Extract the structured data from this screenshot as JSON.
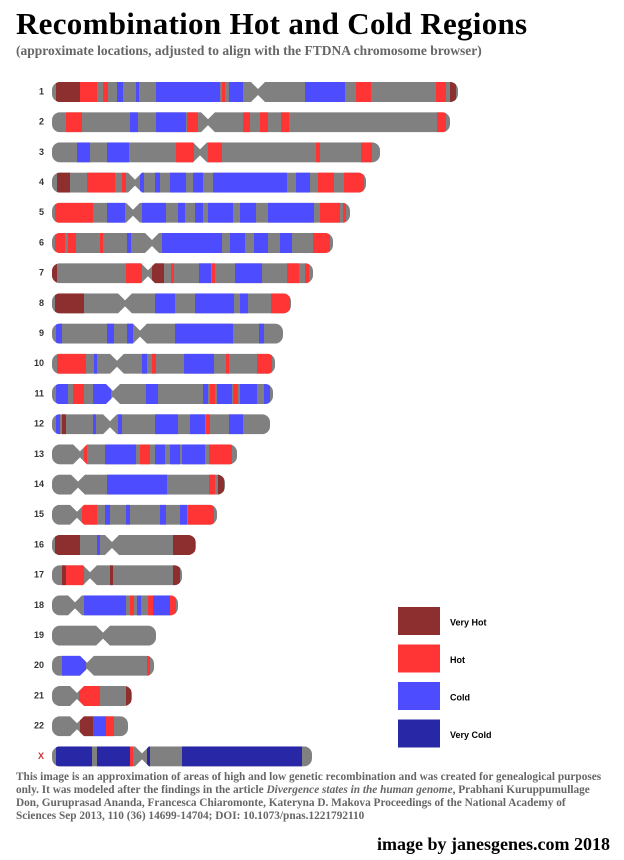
{
  "header": {
    "title": "Recombination Hot and Cold Regions",
    "subtitle": "(approximate locations, adjusted to align with the FTDNA chromosome browser)"
  },
  "chromosomes": [
    "1",
    "2",
    "3",
    "4",
    "5",
    "6",
    "7",
    "8",
    "9",
    "10",
    "11",
    "12",
    "13",
    "14",
    "15",
    "16",
    "17",
    "18",
    "19",
    "20",
    "21",
    "22",
    "X"
  ],
  "legend": [
    "Very Hot",
    "Hot",
    "Cold",
    "Very Cold"
  ],
  "footer": {
    "text_before": "This image is an approximation of  areas of high and low genetic recombination  and was created for genealogical purposes only. It was modeled after the findings in the article ",
    "article": "Divergence states in the human genome",
    "text_after": ", Prabhani Kuruppumullage Don, Guruprasad Ananda, Francesca Chiaromonte, Kateryna D. Makova Proceedings of the National Academy of Sciences Sep 2013, 110 (36) 14699-14704; DOI: 10.1073/pnas.1221792110"
  },
  "credit": "image by janesgenes.com  2018"
}
